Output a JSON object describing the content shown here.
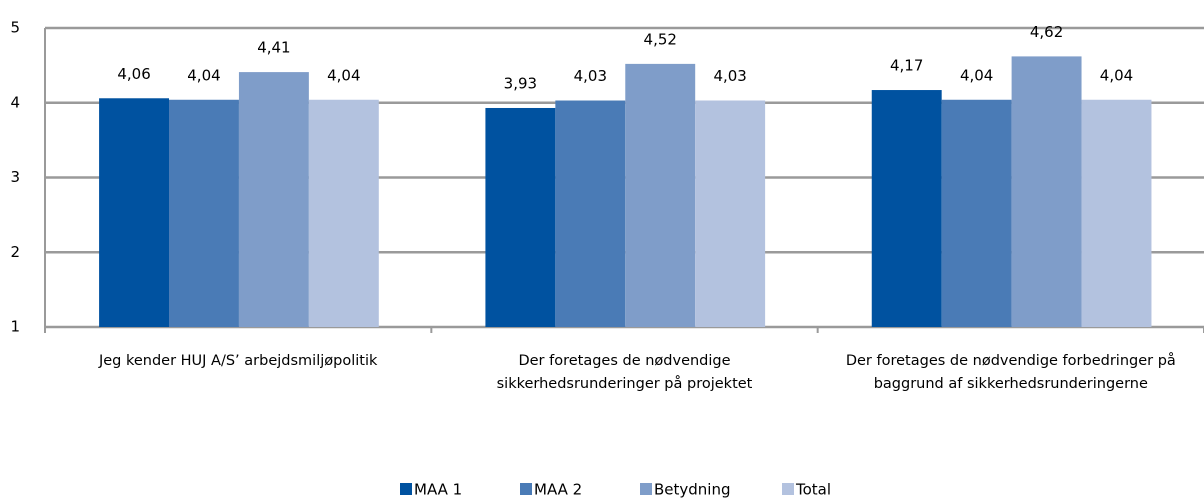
{
  "chart_data": {
    "type": "bar",
    "categories": [
      "Jeg kender HUJ A/S’ arbejdsmiljøpolitik",
      "Der foretages de nødvendige sikkerhedsrunderinger på projektet",
      "Der foretages de nødvendige forbedringer på baggrund af sikkerhedsrunderingerne"
    ],
    "series": [
      {
        "name": "MAA 1",
        "color": "#0052a0",
        "values": [
          4.06,
          3.93,
          4.17
        ],
        "value_labels": [
          "4,06",
          "3,93",
          "4,17"
        ]
      },
      {
        "name": "MAA 2",
        "color": "#4a7bb6",
        "values": [
          4.04,
          4.03,
          4.04
        ],
        "value_labels": [
          "4,04",
          "4,03",
          "4,04"
        ]
      },
      {
        "name": "Betydning",
        "color": "#7f9dc9",
        "values": [
          4.41,
          4.52,
          4.62
        ],
        "value_labels": [
          "4,41",
          "4,52",
          "4,62"
        ]
      },
      {
        "name": "Total",
        "color": "#b3c2df",
        "values": [
          4.04,
          4.03,
          4.04
        ],
        "value_labels": [
          "4,04",
          "4,03",
          "4,04"
        ]
      }
    ],
    "ylim": [
      1,
      5
    ],
    "yticks": [
      1,
      2,
      3,
      4,
      5
    ],
    "grid": true,
    "legend": "bottom"
  }
}
